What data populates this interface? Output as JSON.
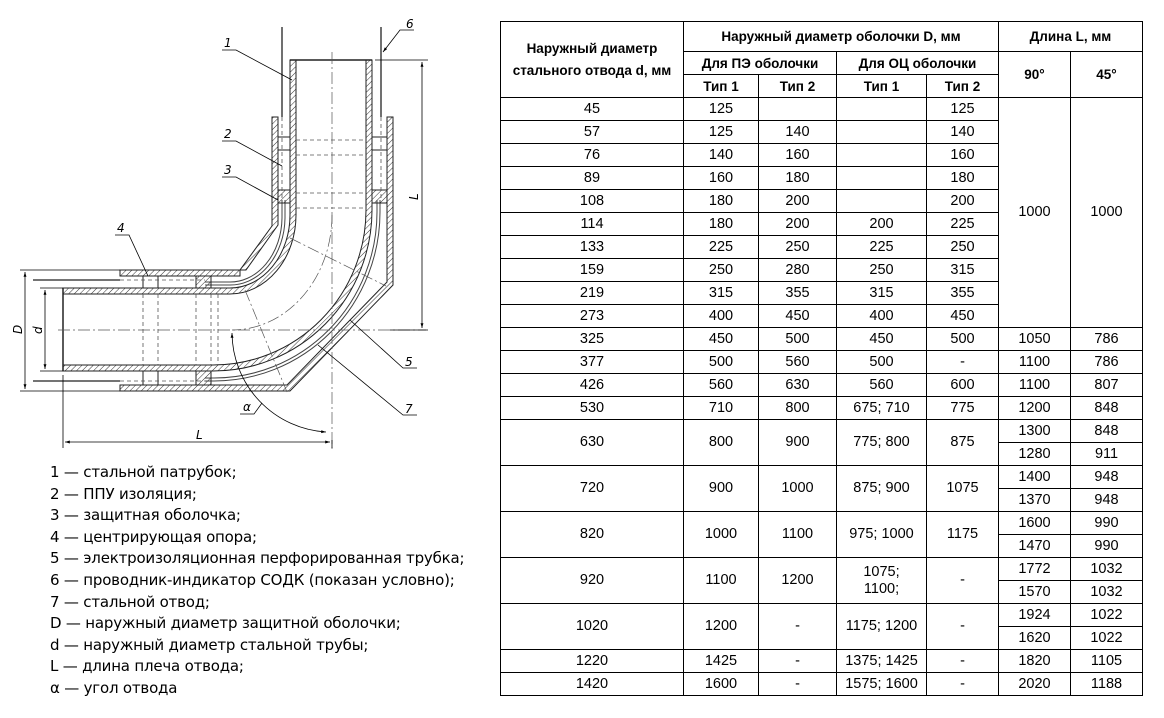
{
  "drawing": {
    "labels": {
      "n1": "1",
      "n2": "2",
      "n3": "3",
      "n4": "4",
      "n5": "5",
      "n6": "6",
      "n7": "7",
      "D": "D",
      "d": "d",
      "L_vertical": "L",
      "L_horizontal": "L",
      "alpha": "α"
    }
  },
  "legend": [
    "1 — стальной патрубок;",
    "2 — ППУ изоляция;",
    "3 — защитная оболочка;",
    "4 — центрирующая опора;",
    "5 — электроизоляционная перфорированная трубка;",
    "6 — проводник-индикатор СОДК (показан условно);",
    "7 — стальной отвод;",
    "D — наружный диаметр защитной оболочки;",
    "d — наружный диаметр стальной трубы;",
    "L — длина плеча отвода;",
    "α — угол отвода"
  ],
  "table": {
    "headers": {
      "steel_d": "Наружный диаметр стального отвода d, мм",
      "shell_D": "Наружный диаметр оболочки D, мм",
      "length": "Длина L, мм",
      "pe": "Для ПЭ оболочки",
      "oc": "Для ОЦ оболочки",
      "type1_pe": "Тип 1",
      "type2_pe": "Тип 2",
      "type1_oc": "Тип 1",
      "type2_oc": "Тип 2",
      "deg90": "90°",
      "deg45": "45°"
    },
    "merged_length": {
      "deg90": "1000",
      "deg45": "1000"
    },
    "rows": [
      {
        "d": "45",
        "pe1": "125",
        "pe2": "",
        "oc1": "",
        "oc2": "125"
      },
      {
        "d": "57",
        "pe1": "125",
        "pe2": "140",
        "oc1": "",
        "oc2": "140"
      },
      {
        "d": "76",
        "pe1": "140",
        "pe2": "160",
        "oc1": "",
        "oc2": "160"
      },
      {
        "d": "89",
        "pe1": "160",
        "pe2": "180",
        "oc1": "",
        "oc2": "180"
      },
      {
        "d": "108",
        "pe1": "180",
        "pe2": "200",
        "oc1": "",
        "oc2": "200"
      },
      {
        "d": "114",
        "pe1": "180",
        "pe2": "200",
        "oc1": "200",
        "oc2": "225"
      },
      {
        "d": "133",
        "pe1": "225",
        "pe2": "250",
        "oc1": "225",
        "oc2": "250"
      },
      {
        "d": "159",
        "pe1": "250",
        "pe2": "280",
        "oc1": "250",
        "oc2": "315"
      },
      {
        "d": "219",
        "pe1": "315",
        "pe2": "355",
        "oc1": "315",
        "oc2": "355"
      },
      {
        "d": "273",
        "pe1": "400",
        "pe2": "450",
        "oc1": "400",
        "oc2": "450"
      },
      {
        "d": "325",
        "pe1": "450",
        "pe2": "500",
        "oc1": "450",
        "oc2": "500",
        "L": [
          [
            "1050",
            "786"
          ]
        ]
      },
      {
        "d": "377",
        "pe1": "500",
        "pe2": "560",
        "oc1": "500",
        "oc2": "-",
        "L": [
          [
            "1100",
            "786"
          ]
        ]
      },
      {
        "d": "426",
        "pe1": "560",
        "pe2": "630",
        "oc1": "560",
        "oc2": "600",
        "L": [
          [
            "1100",
            "807"
          ]
        ]
      },
      {
        "d": "530",
        "pe1": "710",
        "pe2": "800",
        "oc1": "675; 710",
        "oc2": "775",
        "L": [
          [
            "1200",
            "848"
          ]
        ]
      },
      {
        "d": "630",
        "pe1": "800",
        "pe2": "900",
        "oc1": "775; 800",
        "oc2": "875",
        "L": [
          [
            "1300",
            "848"
          ],
          [
            "1280",
            "911"
          ]
        ]
      },
      {
        "d": "720",
        "pe1": "900",
        "pe2": "1000",
        "oc1": "875; 900",
        "oc2": "1075",
        "L": [
          [
            "1400",
            "948"
          ],
          [
            "1370",
            "948"
          ]
        ]
      },
      {
        "d": "820",
        "pe1": "1000",
        "pe2": "1100",
        "oc1": "975; 1000",
        "oc2": "1175",
        "L": [
          [
            "1600",
            "990"
          ],
          [
            "1470",
            "990"
          ]
        ]
      },
      {
        "d": "920",
        "pe1": "1100",
        "pe2": "1200",
        "oc1": "1075;\n1100;",
        "oc2": "-",
        "L": [
          [
            "1772",
            "1032"
          ],
          [
            "1570",
            "1032"
          ]
        ]
      },
      {
        "d": "1020",
        "pe1": "1200",
        "pe2": "-",
        "oc1": "1175; 1200",
        "oc2": "-",
        "L": [
          [
            "1924",
            "1022"
          ],
          [
            "1620",
            "1022"
          ]
        ]
      },
      {
        "d": "1220",
        "pe1": "1425",
        "pe2": "-",
        "oc1": "1375; 1425",
        "oc2": "-",
        "L": [
          [
            "1820",
            "1105"
          ]
        ]
      },
      {
        "d": "1420",
        "pe1": "1600",
        "pe2": "-",
        "oc1": "1575; 1600",
        "oc2": "-",
        "L": [
          [
            "2020",
            "1188"
          ]
        ]
      }
    ]
  }
}
